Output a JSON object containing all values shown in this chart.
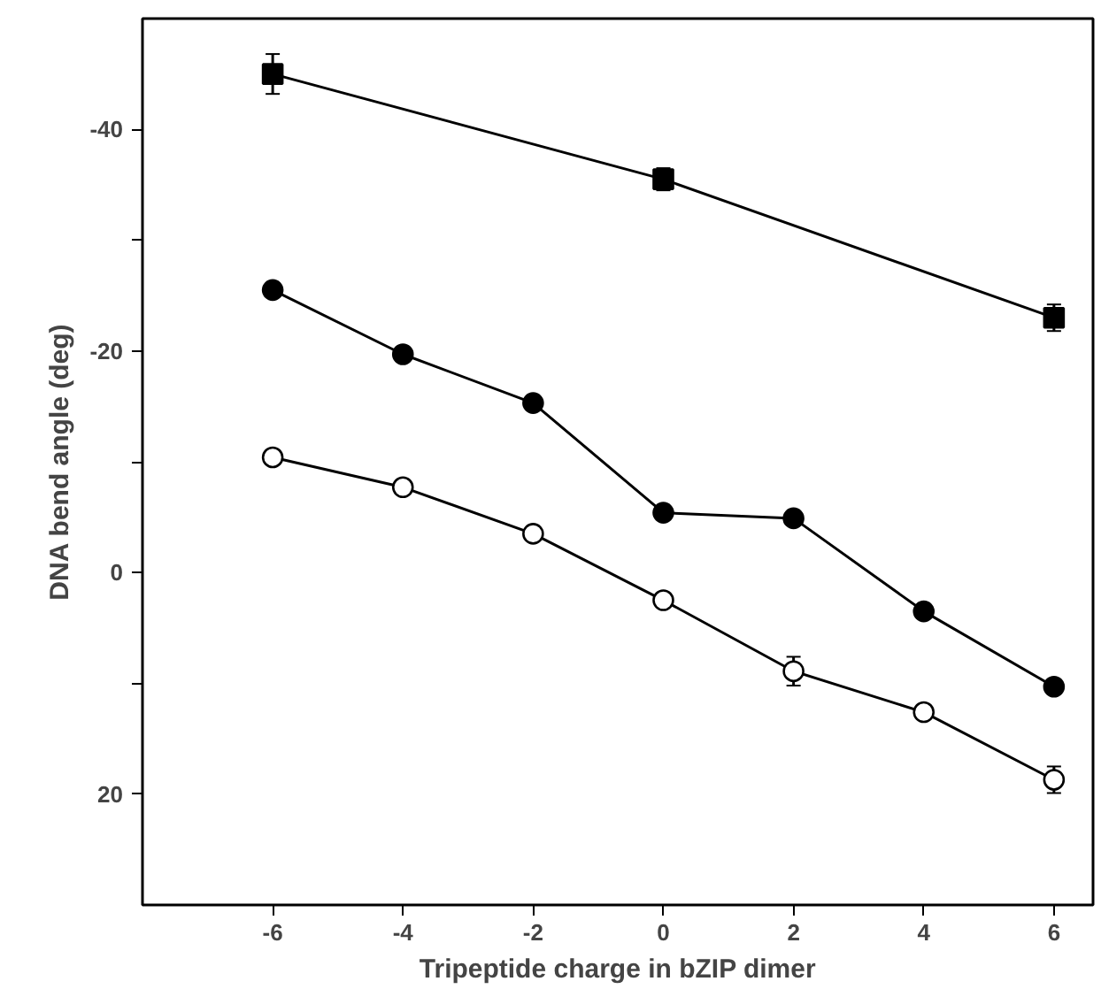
{
  "chart_data": {
    "type": "line",
    "xlabel": "Tripeptide charge in bZIP dimer",
    "ylabel": "DNA bend angle (deg)",
    "x": [
      -6,
      -4,
      -2,
      0,
      2,
      4,
      6
    ],
    "xlim": [
      -8,
      6.6
    ],
    "xticks": [
      -6,
      -4,
      -2,
      0,
      2,
      4,
      6
    ],
    "ylim": [
      30,
      -50
    ],
    "yticks": [
      {
        "value": -40,
        "label": "-40"
      },
      {
        "value": -30,
        "label": null
      },
      {
        "value": -20,
        "label": "-20"
      },
      {
        "value": -10,
        "label": null
      },
      {
        "value": 0,
        "label": "0"
      },
      {
        "value": 10,
        "label": null
      },
      {
        "value": 20,
        "label": "20"
      }
    ],
    "grid": false,
    "line_style": "solid",
    "series": [
      {
        "color": "#000000",
        "marker": "square",
        "x": [
          -6,
          0,
          6
        ],
        "values": [
          -45.0,
          -35.5,
          -23.0
        ],
        "errors": [
          1.8,
          1.0,
          1.2
        ]
      },
      {
        "color": "#000000",
        "marker": "circle",
        "values": [
          -25.5,
          -19.7,
          -15.3,
          -5.4,
          -4.9,
          3.5,
          10.3
        ]
      },
      {
        "color": "#000000",
        "marker": "circle",
        "values": [
          -10.4,
          -7.7,
          -3.5,
          2.5,
          8.9,
          12.6,
          18.7
        ],
        "errors": [
          null,
          null,
          null,
          null,
          1.3,
          null,
          1.2
        ]
      }
    ]
  }
}
